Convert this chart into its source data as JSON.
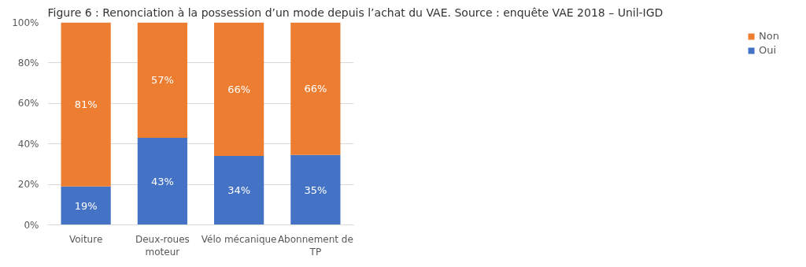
{
  "chart_data": {
    "type": "bar",
    "title": "Figure 6 : Renonciation à la possession d’un mode depuis l’achat du VAE. Source : enquête VAE 2018 – Unil-IGD",
    "categories": [
      "Voiture",
      "Deux-roues moteur",
      "Vélo mécanique",
      "Abonnement de TP"
    ],
    "stacked": true,
    "series": [
      {
        "name": "Oui",
        "color": "#4472c4",
        "values": [
          19,
          43,
          34,
          34.5
        ]
      },
      {
        "name": "Non",
        "color": "#ed7d31",
        "values": [
          81,
          57,
          66,
          65.5
        ]
      }
    ],
    "ylim": [
      0,
      100
    ],
    "yticks": [
      {
        "value": 0,
        "label": "0%"
      },
      {
        "value": 20,
        "label": "20%"
      },
      {
        "value": 40,
        "label": "40%"
      },
      {
        "value": 60,
        "label": "60%"
      },
      {
        "value": 80,
        "label": "80%"
      },
      {
        "value": 100,
        "label": "100%"
      }
    ],
    "value_labels": [
      [
        "19%",
        "43%",
        "34%",
        "35%"
      ],
      [
        "81%",
        "57%",
        "66%",
        "66%"
      ]
    ],
    "grid": "y",
    "legend": "right"
  }
}
